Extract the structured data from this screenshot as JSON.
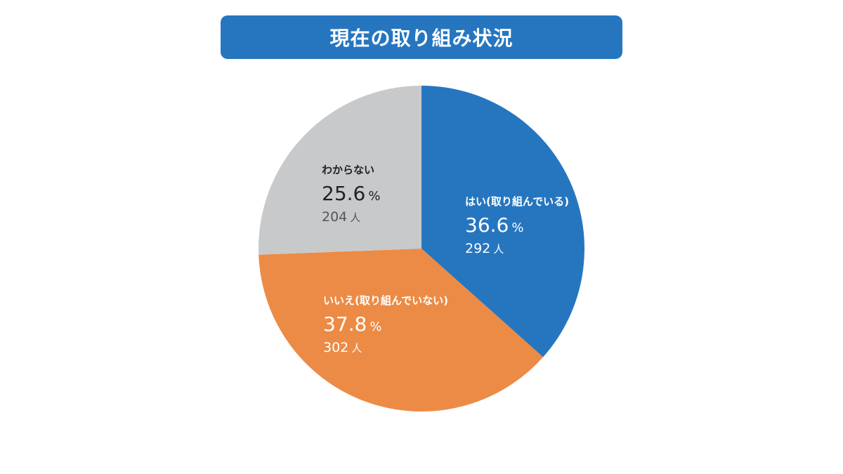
{
  "title": "現在の取り組み状況",
  "chart_data": {
    "type": "pie",
    "title": "現在の取り組み状況",
    "percent_unit": "%",
    "count_unit": "人",
    "slices": [
      {
        "label": "はい(取り組んでいる)",
        "percent": 36.6,
        "percent_text": "36.6",
        "count": 292,
        "count_text": "292",
        "color": "#2676bf",
        "text_color": "#ffffff"
      },
      {
        "label": "いいえ(取り組んでいない)",
        "percent": 37.8,
        "percent_text": "37.8",
        "count": 302,
        "count_text": "302",
        "color": "#ec8b45",
        "text_color": "#ffffff"
      },
      {
        "label": "わからない",
        "percent": 25.6,
        "percent_text": "25.6",
        "count": 204,
        "count_text": "204",
        "color": "#c8c9cb",
        "text_color": "#222222",
        "count_color": "#555555"
      }
    ]
  }
}
